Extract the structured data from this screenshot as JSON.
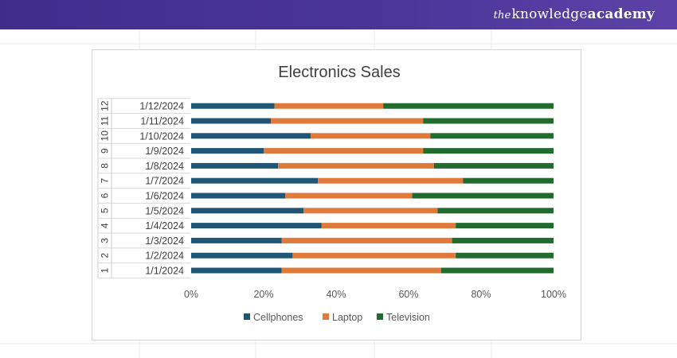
{
  "brand": {
    "prefix": "the",
    "word1": "knowledge",
    "word2": "academy"
  },
  "colors": {
    "cellphones": "#1f5575",
    "laptop": "#e07a3a",
    "television": "#226b2e",
    "banner": "#46328f"
  },
  "chart_data": {
    "type": "bar",
    "orientation": "horizontal",
    "stacking": "percent",
    "title": "Electronics Sales",
    "xlabel": "",
    "ylabel": "",
    "xlim": [
      0,
      100
    ],
    "x_ticks": [
      "0%",
      "20%",
      "40%",
      "60%",
      "80%",
      "100%"
    ],
    "row_numbers": [
      "1",
      "2",
      "3",
      "4",
      "5",
      "6",
      "7",
      "8",
      "9",
      "10",
      "11",
      "12"
    ],
    "categories": [
      "1/1/2024",
      "1/2/2024",
      "1/3/2024",
      "1/4/2024",
      "1/5/2024",
      "1/6/2024",
      "1/7/2024",
      "1/8/2024",
      "1/9/2024",
      "1/10/2024",
      "1/11/2024",
      "1/12/2024"
    ],
    "series": [
      {
        "name": "Cellphones",
        "values": [
          25,
          28,
          25,
          36,
          31,
          26,
          35,
          24,
          20,
          33,
          22,
          23
        ]
      },
      {
        "name": "Laptop",
        "values": [
          44,
          45,
          47,
          37,
          37,
          35,
          40,
          43,
          44,
          33,
          42,
          30
        ]
      },
      {
        "name": "Television",
        "values": [
          31,
          27,
          28,
          27,
          32,
          39,
          25,
          33,
          36,
          34,
          36,
          47
        ]
      }
    ],
    "legend": {
      "position": "bottom"
    },
    "grid": false
  }
}
